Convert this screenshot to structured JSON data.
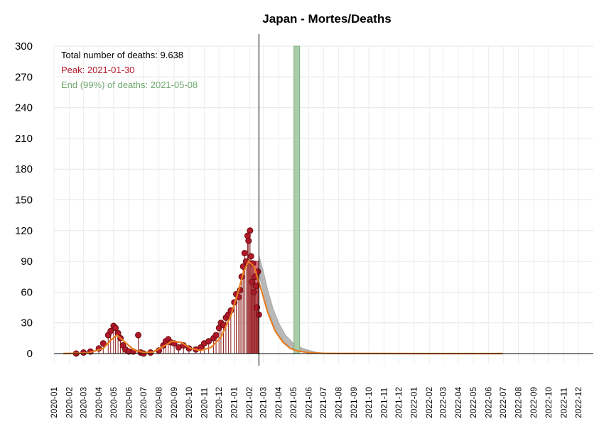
{
  "chart_data": {
    "type": "line",
    "title": "Japan - Mortes/Deaths",
    "xlabel": "",
    "ylabel": "",
    "ylim": [
      0,
      300
    ],
    "yticks": [
      0,
      30,
      60,
      90,
      120,
      150,
      180,
      210,
      240,
      270,
      300
    ],
    "xlim": [
      "2020-01-01",
      "2022-12-31"
    ],
    "xticks": [
      "2020-01",
      "2020-02",
      "2020-03",
      "2020-04",
      "2020-05",
      "2020-06",
      "2020-07",
      "2020-08",
      "2020-09",
      "2020-10",
      "2020-11",
      "2020-12",
      "2021-01",
      "2021-02",
      "2021-03",
      "2021-04",
      "2021-05",
      "2021-06",
      "2021-07",
      "2021-08",
      "2021-09",
      "2021-10",
      "2021-11",
      "2021-12",
      "2022-01",
      "2022-02",
      "2022-03",
      "2022-04",
      "2022-05",
      "2022-06",
      "2022-07",
      "2022-08",
      "2022-09",
      "2022-10",
      "2022-11",
      "2022-12"
    ],
    "grid": true,
    "annotations": {
      "total": "Total number of deaths: 9.638",
      "peak": "Peak: 2021-01-30",
      "end": "End (99%) of deaths: 2021-05-08"
    },
    "last_observed_date": "2021-02-20",
    "peak_date": "2021-01-30",
    "end_date": "2021-05-08",
    "daily_deaths_observed": {
      "x": [
        "2020-02-15",
        "2020-03-01",
        "2020-03-15",
        "2020-04-01",
        "2020-04-10",
        "2020-04-20",
        "2020-04-25",
        "2020-05-01",
        "2020-05-05",
        "2020-05-10",
        "2020-05-15",
        "2020-05-20",
        "2020-05-25",
        "2020-06-01",
        "2020-06-10",
        "2020-06-20",
        "2020-06-25",
        "2020-07-01",
        "2020-07-15",
        "2020-08-01",
        "2020-08-10",
        "2020-08-15",
        "2020-08-20",
        "2020-08-25",
        "2020-09-01",
        "2020-09-10",
        "2020-09-20",
        "2020-10-01",
        "2020-10-15",
        "2020-10-25",
        "2020-11-01",
        "2020-11-10",
        "2020-11-20",
        "2020-11-25",
        "2020-12-01",
        "2020-12-05",
        "2020-12-10",
        "2020-12-15",
        "2020-12-20",
        "2020-12-25",
        "2021-01-01",
        "2021-01-05",
        "2021-01-10",
        "2021-01-13",
        "2021-01-16",
        "2021-01-19",
        "2021-01-22",
        "2021-01-25",
        "2021-01-28",
        "2021-01-30",
        "2021-02-02",
        "2021-02-04",
        "2021-02-06",
        "2021-02-08",
        "2021-02-10",
        "2021-02-12",
        "2021-02-14",
        "2021-02-16",
        "2021-02-18",
        "2021-02-20"
      ],
      "y": [
        0,
        1,
        2,
        5,
        10,
        18,
        22,
        27,
        25,
        20,
        15,
        8,
        4,
        2,
        2,
        18,
        1,
        0,
        1,
        3,
        8,
        12,
        14,
        11,
        10,
        6,
        8,
        5,
        4,
        6,
        10,
        12,
        15,
        18,
        25,
        30,
        28,
        35,
        38,
        42,
        50,
        58,
        55,
        62,
        75,
        85,
        98,
        90,
        115,
        110,
        120,
        95,
        70,
        88,
        60,
        75,
        66,
        45,
        80,
        38
      ]
    },
    "smoothed_fit": {
      "x": [
        "2020-01-20",
        "2020-03-10",
        "2020-04-10",
        "2020-04-25",
        "2020-05-08",
        "2020-05-22",
        "2020-06-10",
        "2020-07-01",
        "2020-07-20",
        "2020-08-10",
        "2020-08-28",
        "2020-09-15",
        "2020-10-05",
        "2020-10-25",
        "2020-11-15",
        "2020-12-05",
        "2020-12-25",
        "2021-01-10",
        "2021-01-20",
        "2021-01-30",
        "2021-02-10",
        "2021-02-25",
        "2021-03-10",
        "2021-03-25",
        "2021-04-10",
        "2021-04-25",
        "2021-05-10",
        "2021-06-01",
        "2021-07-01",
        "2021-08-01",
        "2022-01-01",
        "2022-06-30"
      ],
      "y": [
        0,
        0.5,
        5,
        13,
        18,
        12,
        4,
        1,
        1.5,
        7,
        12,
        11,
        5,
        3,
        6,
        16,
        37,
        62,
        80,
        90,
        85,
        62,
        40,
        22,
        11,
        5,
        2.5,
        1,
        0.3,
        0.1,
        0,
        0
      ]
    },
    "prediction_band": {
      "x": [
        "2021-02-20",
        "2021-03-01",
        "2021-03-10",
        "2021-03-20",
        "2021-04-01",
        "2021-04-15",
        "2021-05-01",
        "2021-05-20",
        "2021-06-10",
        "2021-07-01"
      ],
      "lower": [
        78,
        60,
        44,
        30,
        18,
        10,
        5,
        2,
        1,
        0
      ],
      "upper": [
        96,
        80,
        62,
        45,
        30,
        18,
        10,
        5,
        2,
        0
      ]
    }
  }
}
